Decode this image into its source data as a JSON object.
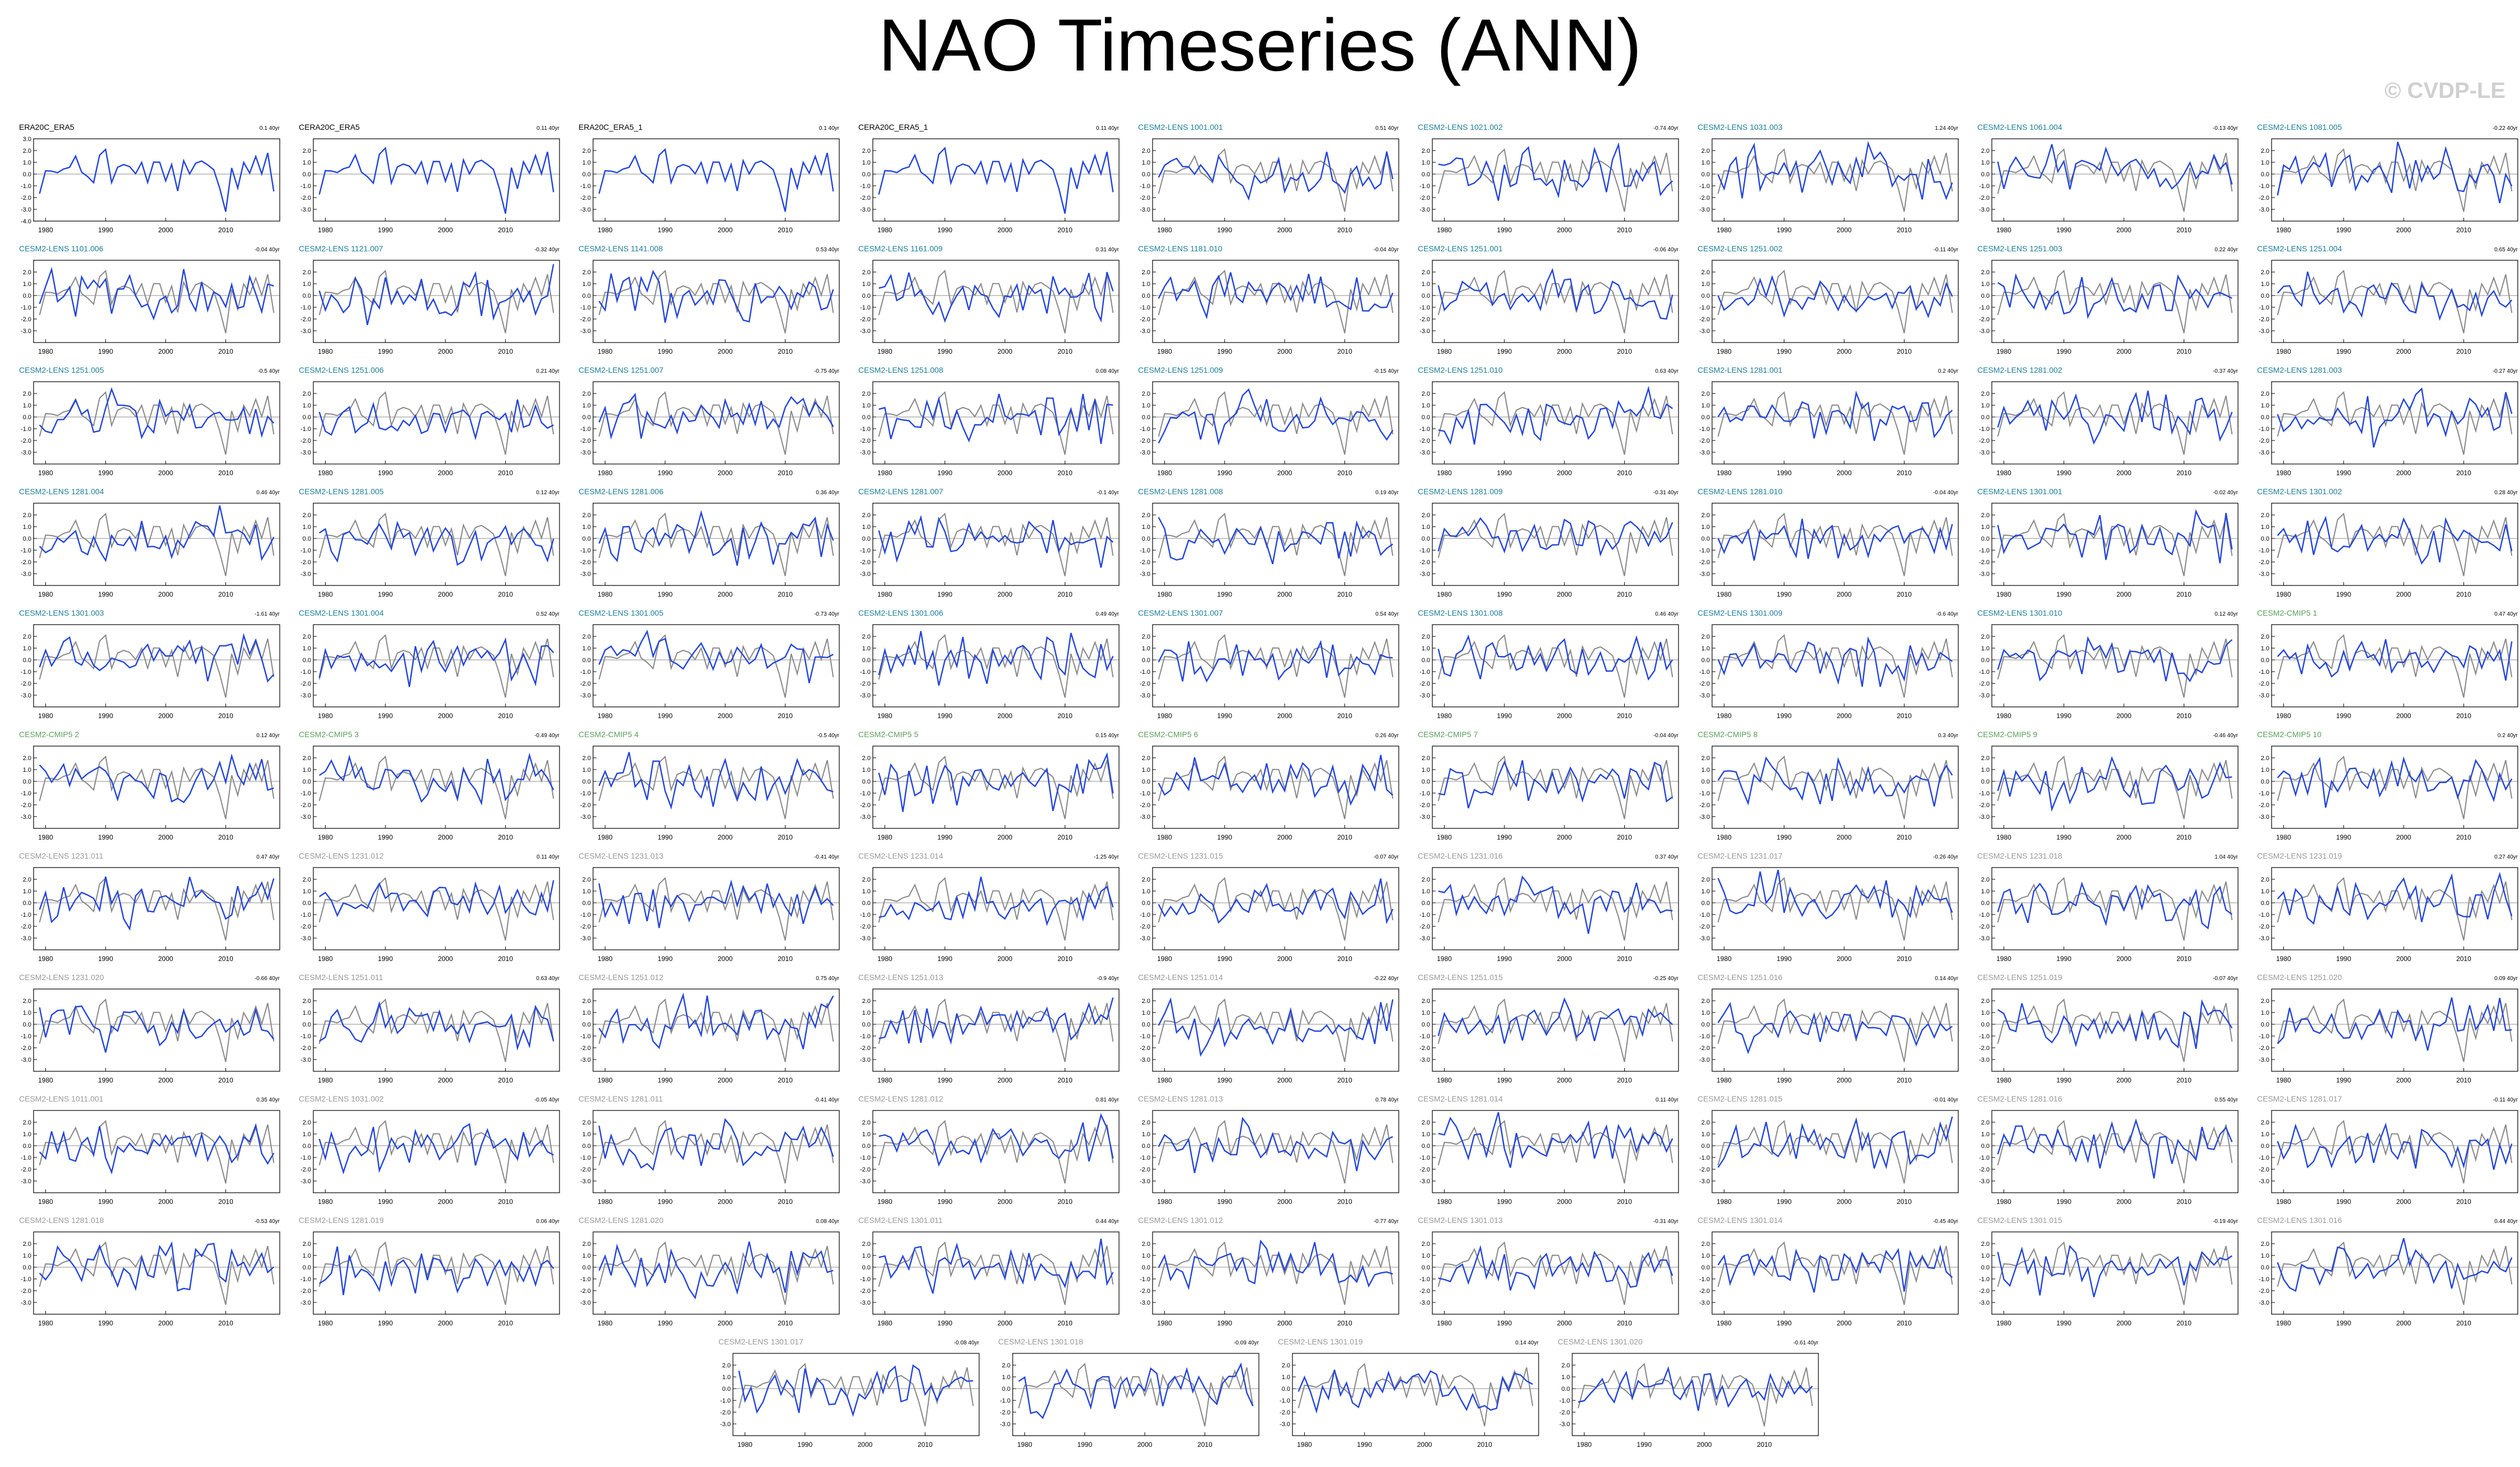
{
  "title": "NAO Timeseries (ANN)",
  "watermark": "© CVDP-LE",
  "colors": {
    "observations_label": "#000000",
    "lens_label": "#1a7f9a",
    "cmip6_label": "#5aa05a",
    "unspecified_label": "#999999",
    "model_line": "#2244dd",
    "obs_line": "#888888",
    "zero_line": "#000000"
  },
  "chart_data": {
    "type": "line",
    "title": "NAO Timeseries (ANN)",
    "ylim": [
      -4.0,
      3.0
    ],
    "x_range": [
      1978,
      2019
    ],
    "x_ticks": [
      1980,
      1990,
      2000,
      2010
    ],
    "y_ticks_default": [
      -3.0,
      -2.0,
      -1.0,
      0.0,
      1.0,
      2.0
    ],
    "y_ticks_first": [
      -4.0,
      -3.0,
      -2.0,
      -1.0,
      0.0,
      1.0,
      2.0,
      3.0
    ],
    "units": "40yr",
    "series_style": "blue line = member annual NAO index, grey line = reference observations",
    "panels": [
      {
        "name": "ERA20C_ERA5",
        "trend": "0.1 40yr",
        "group": "obs"
      },
      {
        "name": "CERA20C_ERA5",
        "trend": "0.11 40yr",
        "group": "obs"
      },
      {
        "name": "ERA20C_ERA5_1",
        "trend": "0.1 40yr",
        "group": "obs"
      },
      {
        "name": "CERA20C_ERA5_1",
        "trend": "0.11 40yr",
        "group": "obs"
      },
      {
        "name": "CESM2-LENS 1001.001",
        "trend": "0.51 40yr",
        "group": "lens"
      },
      {
        "name": "CESM2-LENS 1021.002",
        "trend": "-0.74 40yr",
        "group": "lens"
      },
      {
        "name": "CESM2-LENS 1031.003",
        "trend": "1.24 40yr",
        "group": "lens"
      },
      {
        "name": "CESM2-LENS 1061.004",
        "trend": "-0.13 40yr",
        "group": "lens"
      },
      {
        "name": "CESM2-LENS 1081.005",
        "trend": "-0.22 40yr",
        "group": "lens"
      },
      {
        "name": "CESM2-LENS 1101.006",
        "trend": "-0.04 40yr",
        "group": "lens"
      },
      {
        "name": "CESM2-LENS 1121.007",
        "trend": "-0.32 40yr",
        "group": "lens"
      },
      {
        "name": "CESM2-LENS 1141.008",
        "trend": "0.53 40yr",
        "group": "lens"
      },
      {
        "name": "CESM2-LENS 1161.009",
        "trend": "0.31 40yr",
        "group": "lens"
      },
      {
        "name": "CESM2-LENS 1181.010",
        "trend": "-0.04 40yr",
        "group": "lens"
      },
      {
        "name": "CESM2-LENS 1251.001",
        "trend": "-0.06 40yr",
        "group": "lens"
      },
      {
        "name": "CESM2-LENS 1251.002",
        "trend": "-0.11 40yr",
        "group": "lens"
      },
      {
        "name": "CESM2-LENS 1251.003",
        "trend": "0.22 40yr",
        "group": "lens"
      },
      {
        "name": "CESM2-LENS 1251.004",
        "trend": "0.65 40yr",
        "group": "lens"
      },
      {
        "name": "CESM2-LENS 1251.005",
        "trend": "-0.5 40yr",
        "group": "lens"
      },
      {
        "name": "CESM2-LENS 1251.006",
        "trend": "0.21 40yr",
        "group": "lens"
      },
      {
        "name": "CESM2-LENS 1251.007",
        "trend": "-0.75 40yr",
        "group": "lens"
      },
      {
        "name": "CESM2-LENS 1251.008",
        "trend": "0.08 40yr",
        "group": "lens"
      },
      {
        "name": "CESM2-LENS 1251.009",
        "trend": "-0.15 40yr",
        "group": "lens"
      },
      {
        "name": "CESM2-LENS 1251.010",
        "trend": "0.63 40yr",
        "group": "lens"
      },
      {
        "name": "CESM2-LENS 1281.001",
        "trend": "0.2 40yr",
        "group": "lens"
      },
      {
        "name": "CESM2-LENS 1281.002",
        "trend": "-0.37 40yr",
        "group": "lens"
      },
      {
        "name": "CESM2-LENS 1281.003",
        "trend": "-0.27 40yr",
        "group": "lens"
      },
      {
        "name": "CESM2-LENS 1281.004",
        "trend": "0.46 40yr",
        "group": "lens"
      },
      {
        "name": "CESM2-LENS 1281.005",
        "trend": "0.12 40yr",
        "group": "lens"
      },
      {
        "name": "CESM2-LENS 1281.006",
        "trend": "0.36 40yr",
        "group": "lens"
      },
      {
        "name": "CESM2-LENS 1281.007",
        "trend": "-0.1 40yr",
        "group": "lens"
      },
      {
        "name": "CESM2-LENS 1281.008",
        "trend": "0.19 40yr",
        "group": "lens"
      },
      {
        "name": "CESM2-LENS 1281.009",
        "trend": "-0.31 40yr",
        "group": "lens"
      },
      {
        "name": "CESM2-LENS 1281.010",
        "trend": "-0.04 40yr",
        "group": "lens"
      },
      {
        "name": "CESM2-LENS 1301.001",
        "trend": "-0.02 40yr",
        "group": "lens"
      },
      {
        "name": "CESM2-LENS 1301.002",
        "trend": "0.28 40yr",
        "group": "lens"
      },
      {
        "name": "CESM2-LENS 1301.003",
        "trend": "-1.61 40yr",
        "group": "lens"
      },
      {
        "name": "CESM2-LENS 1301.004",
        "trend": "0.52 40yr",
        "group": "lens"
      },
      {
        "name": "CESM2-LENS 1301.005",
        "trend": "-0.73 40yr",
        "group": "lens"
      },
      {
        "name": "CESM2-LENS 1301.006",
        "trend": "0.49 40yr",
        "group": "lens"
      },
      {
        "name": "CESM2-LENS 1301.007",
        "trend": "0.54 40yr",
        "group": "lens"
      },
      {
        "name": "CESM2-LENS 1301.008",
        "trend": "0.46 40yr",
        "group": "lens"
      },
      {
        "name": "CESM2-LENS 1301.009",
        "trend": "-0.6 40yr",
        "group": "lens"
      },
      {
        "name": "CESM2-LENS 1301.010",
        "trend": "0.12 40yr",
        "group": "lens"
      },
      {
        "name": "CESM2-CMIP5 1",
        "trend": "0.47 40yr",
        "group": "cmip6"
      },
      {
        "name": "CESM2-CMIP5 2",
        "trend": "0.12 40yr",
        "group": "cmip6"
      },
      {
        "name": "CESM2-CMIP5 3",
        "trend": "-0.49 40yr",
        "group": "cmip6"
      },
      {
        "name": "CESM2-CMIP5 4",
        "trend": "-0.5 40yr",
        "group": "cmip6"
      },
      {
        "name": "CESM2-CMIP5 5",
        "trend": "0.15 40yr",
        "group": "cmip6"
      },
      {
        "name": "CESM2-CMIP5 6",
        "trend": "0.26 40yr",
        "group": "cmip6"
      },
      {
        "name": "CESM2-CMIP5 7",
        "trend": "-0.04 40yr",
        "group": "cmip6"
      },
      {
        "name": "CESM2-CMIP5 8",
        "trend": "0.3 40yr",
        "group": "cmip6"
      },
      {
        "name": "CESM2-CMIP5 9",
        "trend": "-0.46 40yr",
        "group": "cmip6"
      },
      {
        "name": "CESM2-CMIP5 10",
        "trend": "0.2 40yr",
        "group": "cmip6"
      },
      {
        "name": "CESM2-LENS 1231.011",
        "trend": "0.47 40yr",
        "group": "other"
      },
      {
        "name": "CESM2-LENS 1231.012",
        "trend": "0.11 40yr",
        "group": "other"
      },
      {
        "name": "CESM2-LENS 1231.013",
        "trend": "-0.41 40yr",
        "group": "other"
      },
      {
        "name": "CESM2-LENS 1231.014",
        "trend": "-1.25 40yr",
        "group": "other"
      },
      {
        "name": "CESM2-LENS 1231.015",
        "trend": "-0.07 40yr",
        "group": "other"
      },
      {
        "name": "CESM2-LENS 1231.016",
        "trend": "0.37 40yr",
        "group": "other"
      },
      {
        "name": "CESM2-LENS 1231.017",
        "trend": "-0.26 40yr",
        "group": "other"
      },
      {
        "name": "CESM2-LENS 1231.018",
        "trend": "1.04 40yr",
        "group": "other"
      },
      {
        "name": "CESM2-LENS 1231.019",
        "trend": "0.27 40yr",
        "group": "other"
      },
      {
        "name": "CESM2-LENS 1231.020",
        "trend": "-0.66 40yr",
        "group": "other"
      },
      {
        "name": "CESM2-LENS 1251.011",
        "trend": "0.63 40yr",
        "group": "other"
      },
      {
        "name": "CESM2-LENS 1251.012",
        "trend": "0.75 40yr",
        "group": "other"
      },
      {
        "name": "CESM2-LENS 1251.013",
        "trend": "-0.9 40yr",
        "group": "other"
      },
      {
        "name": "CESM2-LENS 1251.014",
        "trend": "-0.22 40yr",
        "group": "other"
      },
      {
        "name": "CESM2-LENS 1251.015",
        "trend": "-0.25 40yr",
        "group": "other"
      },
      {
        "name": "CESM2-LENS 1251.016",
        "trend": "0.14 40yr",
        "group": "other"
      },
      {
        "name": "CESM2-LENS 1251.019",
        "trend": "-0.07 40yr",
        "group": "other"
      },
      {
        "name": "CESM2-LENS 1251.020",
        "trend": "0.09 40yr",
        "group": "other"
      },
      {
        "name": "CESM2-LENS 1011.001",
        "trend": "0.35 40yr",
        "group": "other"
      },
      {
        "name": "CESM2-LENS 1031.002",
        "trend": "-0.05 40yr",
        "group": "other"
      },
      {
        "name": "CESM2-LENS 1281.011",
        "trend": "-0.41 40yr",
        "group": "other"
      },
      {
        "name": "CESM2-LENS 1281.012",
        "trend": "0.81 40yr",
        "group": "other"
      },
      {
        "name": "CESM2-LENS 1281.013",
        "trend": "0.78 40yr",
        "group": "other"
      },
      {
        "name": "CESM2-LENS 1281.014",
        "trend": "0.11 40yr",
        "group": "other"
      },
      {
        "name": "CESM2-LENS 1281.015",
        "trend": "-0.01 40yr",
        "group": "other"
      },
      {
        "name": "CESM2-LENS 1281.016",
        "trend": "0.55 40yr",
        "group": "other"
      },
      {
        "name": "CESM2-LENS 1281.017",
        "trend": "-0.11 40yr",
        "group": "other"
      },
      {
        "name": "CESM2-LENS 1281.018",
        "trend": "-0.53 40yr",
        "group": "other"
      },
      {
        "name": "CESM2-LENS 1281.019",
        "trend": "0.06 40yr",
        "group": "other"
      },
      {
        "name": "CESM2-LENS 1281.020",
        "trend": "0.08 40yr",
        "group": "other"
      },
      {
        "name": "CESM2-LENS 1301.011",
        "trend": "0.44 40yr",
        "group": "other"
      },
      {
        "name": "CESM2-LENS 1301.012",
        "trend": "-0.77 40yr",
        "group": "other"
      },
      {
        "name": "CESM2-LENS 1301.013",
        "trend": "-0.31 40yr",
        "group": "other"
      },
      {
        "name": "CESM2-LENS 1301.014",
        "trend": "-0.45 40yr",
        "group": "other"
      },
      {
        "name": "CESM2-LENS 1301.015",
        "trend": "-0.19 40yr",
        "group": "other"
      },
      {
        "name": "CESM2-LENS 1301.016",
        "trend": "0.44 40yr",
        "group": "other"
      },
      {
        "name": "CESM2-LENS 1301.017",
        "trend": "-0.08 40yr",
        "group": "other"
      },
      {
        "name": "CESM2-LENS 1301.018",
        "trend": "-0.09 40yr",
        "group": "other"
      },
      {
        "name": "CESM2-LENS 1301.019",
        "trend": "0.14 40yr",
        "group": "other"
      },
      {
        "name": "CESM2-LENS 1301.020",
        "trend": "-0.61 40yr",
        "group": "other"
      }
    ]
  }
}
